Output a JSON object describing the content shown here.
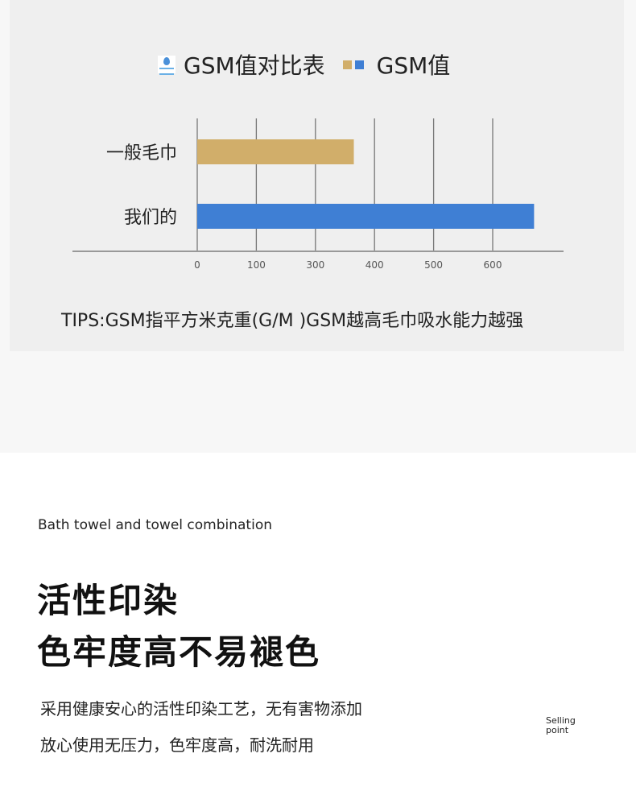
{
  "chart_data": {
    "type": "bar",
    "orientation": "horizontal",
    "title": "GSM值对比表",
    "legend": [
      {
        "name": "GSM值",
        "colors": [
          "#d1ae6a",
          "#3f7fd4"
        ]
      }
    ],
    "categories": [
      "一般毛巾",
      "我们的"
    ],
    "values": [
      365,
      670
    ],
    "colors": [
      "#d1ae6a",
      "#3f7fd4"
    ],
    "x_tick_labels": [
      "0",
      "100",
      "300",
      "400",
      "500",
      "600"
    ],
    "grid": true
  },
  "tips": "TIPS:GSM指平方米克重(G/M )GSM越高毛巾吸水能力越强",
  "section": {
    "subtitle": "Bath towel and towel combination",
    "heading_1": "活性印染",
    "heading_2": "色牢度高不易褪色",
    "body_1": "采用健康安心的活性印染工艺，无有害物添加",
    "body_2": "放心使用无压力，色牢度高，耐洗耐用",
    "badge": "Selling point"
  }
}
